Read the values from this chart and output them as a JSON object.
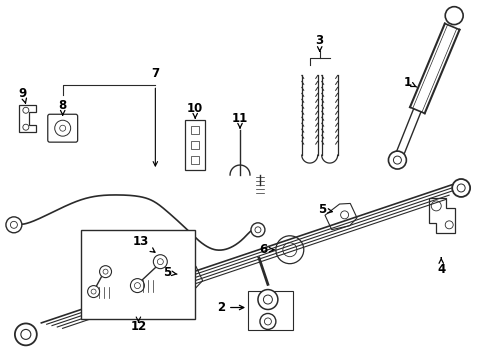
{
  "bg_color": "#ffffff",
  "line_color": "#2a2a2a",
  "label_fontsize": 8.5,
  "fig_w": 4.9,
  "fig_h": 3.6,
  "dpi": 100
}
